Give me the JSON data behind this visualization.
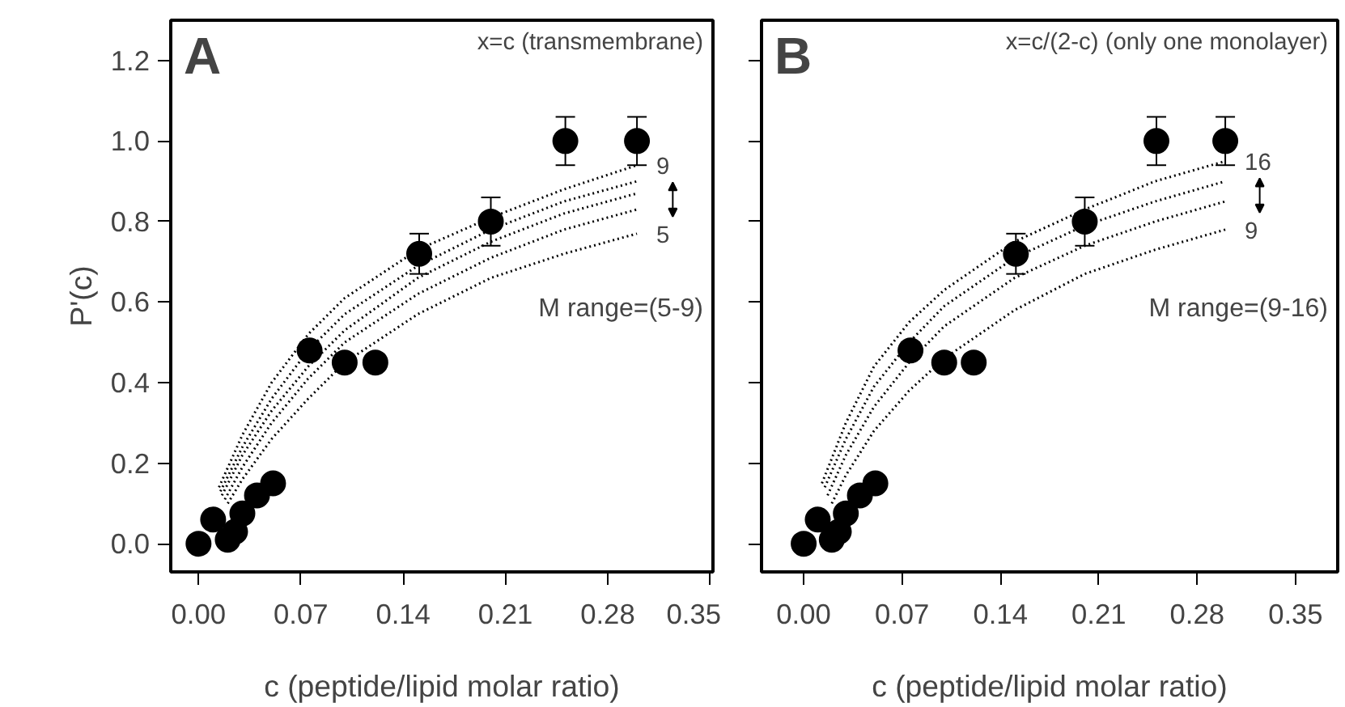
{
  "chart_data": [
    {
      "type": "scatter",
      "xlabel": "c (peptide/lipid molar ratio)",
      "ylabel": "P'(c)",
      "xlim": [
        -0.019,
        0.352
      ],
      "ylim": [
        -0.07,
        1.3
      ],
      "xticks": [
        {
          "value": 0,
          "label": "0.00"
        },
        {
          "value": 0.07,
          "label": "0.07"
        },
        {
          "value": 0.14,
          "label": "0.14"
        },
        {
          "value": 0.21,
          "label": "0.21"
        },
        {
          "value": 0.28,
          "label": "0.28"
        },
        {
          "value": 0.35,
          "label": "0.35"
        }
      ],
      "yticks": [
        {
          "value": 0,
          "label": "0.0"
        },
        {
          "value": 0.2,
          "label": "0.2"
        },
        {
          "value": 0.4,
          "label": "0.4"
        },
        {
          "value": 0.6,
          "label": "0.6"
        },
        {
          "value": 0.8,
          "label": "0.8"
        },
        {
          "value": 1.0,
          "label": "1.0"
        },
        {
          "value": 1.2,
          "label": "1.2"
        }
      ],
      "grid": false,
      "annotations": [
        "A",
        "x=c (transmembrane)",
        "M range=(5-9)",
        "9",
        "5"
      ],
      "series": [
        {
          "type": "line",
          "color": "#000000",
          "line_style": "dotted",
          "marker": "none",
          "x": [
            0.014,
            0.03,
            0.05,
            0.075,
            0.1,
            0.15,
            0.2,
            0.25,
            0.3
          ],
          "values": [
            0.14,
            0.27,
            0.4,
            0.52,
            0.61,
            0.73,
            0.81,
            0.88,
            0.94
          ]
        },
        {
          "type": "line",
          "color": "#000000",
          "line_style": "dotted",
          "marker": "none",
          "x": [
            0.015,
            0.03,
            0.05,
            0.075,
            0.1,
            0.15,
            0.2,
            0.25,
            0.3
          ],
          "values": [
            0.13,
            0.24,
            0.36,
            0.48,
            0.57,
            0.69,
            0.78,
            0.85,
            0.9
          ]
        },
        {
          "type": "line",
          "color": "#000000",
          "line_style": "dotted",
          "marker": "none",
          "x": [
            0.016,
            0.03,
            0.05,
            0.075,
            0.1,
            0.15,
            0.2,
            0.25,
            0.3
          ],
          "values": [
            0.12,
            0.22,
            0.33,
            0.44,
            0.53,
            0.66,
            0.75,
            0.82,
            0.87
          ]
        },
        {
          "type": "line",
          "color": "#000000",
          "line_style": "dotted",
          "marker": "none",
          "x": [
            0.018,
            0.03,
            0.05,
            0.075,
            0.1,
            0.15,
            0.2,
            0.25,
            0.3
          ],
          "values": [
            0.11,
            0.19,
            0.3,
            0.41,
            0.5,
            0.62,
            0.71,
            0.78,
            0.83
          ]
        },
        {
          "type": "line",
          "color": "#000000",
          "line_style": "dotted",
          "marker": "none",
          "x": [
            0.02,
            0.03,
            0.05,
            0.075,
            0.1,
            0.15,
            0.2,
            0.25,
            0.3
          ],
          "values": [
            0.1,
            0.16,
            0.26,
            0.36,
            0.45,
            0.57,
            0.66,
            0.72,
            0.77
          ]
        },
        {
          "color": "#000000",
          "marker": "circle",
          "x": [
            0.0,
            0.01,
            0.02,
            0.025,
            0.03,
            0.04,
            0.051,
            0.076,
            0.1,
            0.121,
            0.151,
            0.2,
            0.251,
            0.3
          ],
          "values": [
            0.0,
            0.06,
            0.01,
            0.03,
            0.075,
            0.12,
            0.15,
            0.48,
            0.45,
            0.45,
            0.72,
            0.8,
            1.0,
            1.0
          ],
          "errors": [
            null,
            null,
            null,
            null,
            null,
            null,
            null,
            0.02,
            null,
            null,
            0.05,
            0.06,
            0.06,
            0.06
          ]
        }
      ]
    },
    {
      "type": "scatter",
      "xlabel": "c (peptide/lipid molar ratio)",
      "xlim": [
        -0.03,
        0.38
      ],
      "ylim": [
        -0.07,
        1.3
      ],
      "xticks": [
        {
          "value": 0,
          "label": "0.00"
        },
        {
          "value": 0.07,
          "label": "0.07"
        },
        {
          "value": 0.14,
          "label": "0.14"
        },
        {
          "value": 0.21,
          "label": "0.21"
        },
        {
          "value": 0.28,
          "label": "0.28"
        },
        {
          "value": 0.35,
          "label": "0.35"
        }
      ],
      "yticks": [
        {
          "value": 0,
          "label": null
        },
        {
          "value": 0.2,
          "label": null
        },
        {
          "value": 0.4,
          "label": null
        },
        {
          "value": 0.6,
          "label": null
        },
        {
          "value": 0.8,
          "label": null
        },
        {
          "value": 1.0,
          "label": null
        },
        {
          "value": 1.2,
          "label": null
        }
      ],
      "tick_labels": "x",
      "grid": false,
      "annotations": [
        "B",
        "x=c/(2-c) (only one monolayer)",
        "M range=(9-16)",
        "16",
        "9"
      ],
      "series": [
        {
          "type": "line",
          "color": "#000000",
          "line_style": "dotted",
          "marker": "none",
          "x": [
            0.013,
            0.03,
            0.05,
            0.075,
            0.1,
            0.15,
            0.2,
            0.25,
            0.3
          ],
          "values": [
            0.15,
            0.3,
            0.44,
            0.55,
            0.63,
            0.75,
            0.83,
            0.9,
            0.95
          ]
        },
        {
          "type": "line",
          "color": "#000000",
          "line_style": "dotted",
          "marker": "none",
          "x": [
            0.015,
            0.03,
            0.05,
            0.075,
            0.1,
            0.15,
            0.2,
            0.25,
            0.3
          ],
          "values": [
            0.14,
            0.26,
            0.39,
            0.5,
            0.59,
            0.71,
            0.79,
            0.85,
            0.9
          ]
        },
        {
          "type": "line",
          "color": "#000000",
          "line_style": "dotted",
          "marker": "none",
          "x": [
            0.017,
            0.03,
            0.05,
            0.075,
            0.1,
            0.15,
            0.2,
            0.25,
            0.3
          ],
          "values": [
            0.12,
            0.22,
            0.34,
            0.45,
            0.54,
            0.66,
            0.74,
            0.8,
            0.85
          ]
        },
        {
          "type": "line",
          "color": "#000000",
          "line_style": "dotted",
          "marker": "none",
          "x": [
            0.02,
            0.03,
            0.05,
            0.075,
            0.1,
            0.15,
            0.2,
            0.25,
            0.3
          ],
          "values": [
            0.1,
            0.17,
            0.28,
            0.38,
            0.46,
            0.58,
            0.67,
            0.73,
            0.78
          ]
        },
        {
          "color": "#000000",
          "marker": "circle",
          "x": [
            0.0,
            0.01,
            0.02,
            0.025,
            0.03,
            0.04,
            0.051,
            0.076,
            0.1,
            0.121,
            0.151,
            0.2,
            0.251,
            0.3
          ],
          "values": [
            0.0,
            0.06,
            0.01,
            0.03,
            0.075,
            0.12,
            0.15,
            0.48,
            0.45,
            0.45,
            0.72,
            0.8,
            1.0,
            1.0
          ],
          "errors": [
            null,
            null,
            null,
            null,
            null,
            null,
            null,
            0.02,
            null,
            null,
            0.05,
            0.06,
            0.06,
            0.06
          ]
        }
      ]
    }
  ]
}
